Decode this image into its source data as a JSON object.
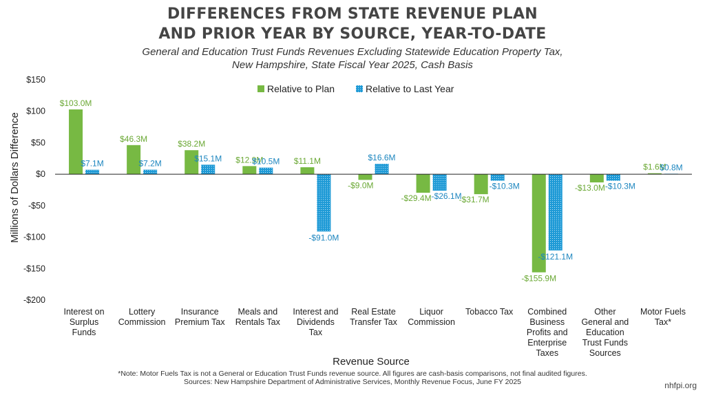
{
  "title": {
    "line1": "DIFFERENCES FROM STATE REVENUE PLAN",
    "line2": "AND PRIOR YEAR BY SOURCE, YEAR-TO-DATE"
  },
  "subtitle": {
    "line1": "General and Education Trust Funds Revenues Excluding Statewide Education Property Tax,",
    "line2": "New Hampshire, State Fiscal Year 2025, Cash Basis"
  },
  "chart_data": {
    "type": "bar",
    "categories": [
      [
        "Interest on",
        "Surplus",
        "Funds"
      ],
      [
        "Lottery",
        "Commission"
      ],
      [
        "Insurance",
        "Premium Tax"
      ],
      [
        "Meals and",
        "Rentals Tax"
      ],
      [
        "Interest and",
        "Dividends",
        "Tax"
      ],
      [
        "Real Estate",
        "Transfer Tax"
      ],
      [
        "Liquor",
        "Commission"
      ],
      [
        "Tobacco Tax"
      ],
      [
        "Combined",
        "Business",
        "Profits and",
        "Enterprise",
        "Taxes"
      ],
      [
        "Other",
        "General and",
        "Education",
        "Trust Funds",
        "Sources"
      ],
      [
        "Motor Fuels",
        "Tax*"
      ]
    ],
    "series": [
      {
        "name": "Relative to Plan",
        "color": "#77b943",
        "pattern": "solid",
        "values": [
          103.0,
          46.3,
          38.2,
          12.9,
          11.1,
          -9.0,
          -29.4,
          -31.7,
          -155.9,
          -13.0,
          1.6
        ],
        "labels": [
          "$103.0M",
          "$46.3M",
          "$38.2M",
          "$12.9M",
          "$11.1M",
          "-$9.0M",
          "-$29.4M",
          "-$31.7M",
          "-$155.9M",
          "-$13.0M",
          "$1.6M"
        ]
      },
      {
        "name": "Relative to Last Year",
        "color": "#1e9ad6",
        "pattern": "dotted",
        "values": [
          7.1,
          7.2,
          15.1,
          10.5,
          -91.0,
          16.6,
          -26.1,
          -10.3,
          -121.1,
          -10.3,
          0.8
        ],
        "labels": [
          "$7.1M",
          "$7.2M",
          "$15.1M",
          "$10.5M",
          "-$91.0M",
          "$16.6M",
          "-$26.1M",
          "-$10.3M",
          "-$121.1M",
          "-$10.3M",
          "$0.8M"
        ]
      }
    ],
    "ylim": [
      -200,
      150
    ],
    "yticks": [
      150,
      100,
      50,
      0,
      -50,
      -100,
      -150,
      -200
    ],
    "ytick_labels": [
      "$150",
      "$100",
      "$50",
      "$0",
      "-$50",
      "-$100",
      "-$150",
      "-$200"
    ],
    "xlabel": "Revenue Source",
    "ylabel": "Millions of Dollars Difference",
    "grid": false,
    "legend_position": "top"
  },
  "footnote": {
    "line1": "*Note: Motor Fuels Tax is not a General or Education Trust Funds revenue source. All figures are cash-basis comparisons, not final audited figures.",
    "line2": "Sources: New Hampshire Department of Administrative Services, Monthly Revenue Focus, June FY 2025"
  },
  "brand": "nhfpi.org"
}
